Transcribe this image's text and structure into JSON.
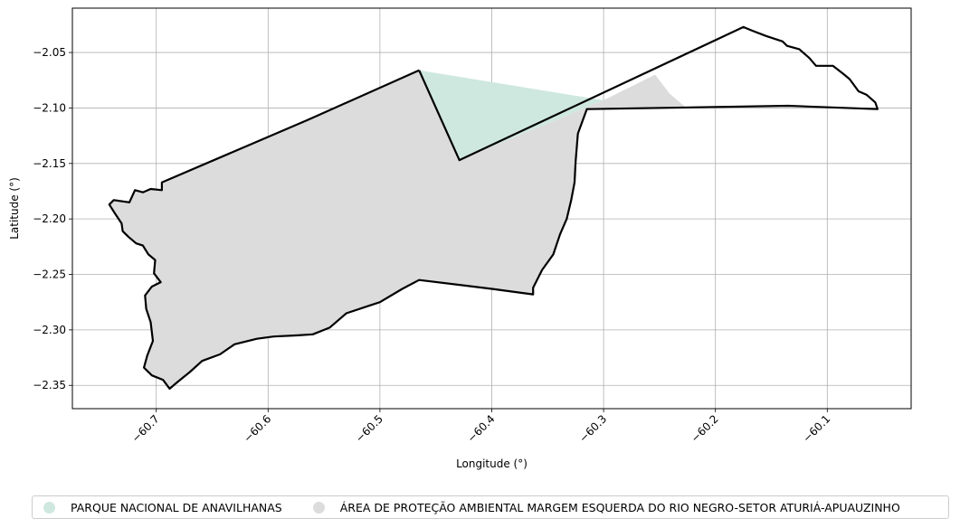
{
  "chart_data": {
    "type": "map",
    "xlabel": "Longitude (°)",
    "ylabel": "Latitude (°)",
    "xlim": [
      -60.775,
      -60.025
    ],
    "ylim": [
      -2.371,
      -2.01
    ],
    "xticks": [
      -60.7,
      -60.6,
      -60.5,
      -60.4,
      -60.3,
      -60.2,
      -60.1
    ],
    "xtick_labels": [
      "−60.7",
      "−60.6",
      "−60.5",
      "−60.4",
      "−60.3",
      "−60.2",
      "−60.1"
    ],
    "yticks": [
      -2.05,
      -2.1,
      -2.15,
      -2.2,
      -2.25,
      -2.3,
      -2.35
    ],
    "ytick_labels": [
      "−2.05",
      "−2.10",
      "−2.15",
      "−2.20",
      "−2.25",
      "−2.30",
      "−2.35"
    ],
    "grid": true,
    "legend_position": "bottom",
    "series": [
      {
        "name": "PARQUE NACIONAL DE ANAVILHANAS",
        "color": "#cfe8df",
        "coords": [
          [
            -60.465,
            -2.066
          ],
          [
            -60.429,
            -2.147
          ],
          [
            -60.3,
            -2.093
          ],
          [
            -60.465,
            -2.066
          ]
        ]
      },
      {
        "name": "ÁREA DE PROTEÇÃO AMBIENTAL MARGEM ESQUERDA DO RIO NEGRO-SETOR ATURIÁ-APUAUZINHO",
        "color": "#dcdcdc",
        "coords": [
          [
            -60.465,
            -2.066
          ],
          [
            -60.565,
            -2.111
          ],
          [
            -60.695,
            -2.167
          ],
          [
            -60.695,
            -2.174
          ],
          [
            -60.705,
            -2.173
          ],
          [
            -60.712,
            -2.176
          ],
          [
            -60.719,
            -2.174
          ],
          [
            -60.724,
            -2.185
          ],
          [
            -60.738,
            -2.183
          ],
          [
            -60.742,
            -2.187
          ],
          [
            -60.737,
            -2.195
          ],
          [
            -60.731,
            -2.204
          ],
          [
            -60.73,
            -2.211
          ],
          [
            -60.725,
            -2.216
          ],
          [
            -60.718,
            -2.222
          ],
          [
            -60.712,
            -2.224
          ],
          [
            -60.707,
            -2.232
          ],
          [
            -60.701,
            -2.237
          ],
          [
            -60.702,
            -2.249
          ],
          [
            -60.696,
            -2.257
          ],
          [
            -60.704,
            -2.261
          ],
          [
            -60.71,
            -2.269
          ],
          [
            -60.709,
            -2.281
          ],
          [
            -60.705,
            -2.293
          ],
          [
            -60.703,
            -2.31
          ],
          [
            -60.708,
            -2.323
          ],
          [
            -60.711,
            -2.334
          ],
          [
            -60.704,
            -2.341
          ],
          [
            -60.694,
            -2.345
          ],
          [
            -60.688,
            -2.353
          ],
          [
            -60.681,
            -2.347
          ],
          [
            -60.67,
            -2.338
          ],
          [
            -60.659,
            -2.328
          ],
          [
            -60.643,
            -2.322
          ],
          [
            -60.63,
            -2.313
          ],
          [
            -60.61,
            -2.308
          ],
          [
            -60.595,
            -2.306
          ],
          [
            -60.575,
            -2.305
          ],
          [
            -60.56,
            -2.304
          ],
          [
            -60.545,
            -2.298
          ],
          [
            -60.53,
            -2.285
          ],
          [
            -60.512,
            -2.279
          ],
          [
            -60.5,
            -2.275
          ],
          [
            -60.48,
            -2.263
          ],
          [
            -60.465,
            -2.255
          ],
          [
            -60.4,
            -2.263
          ],
          [
            -60.363,
            -2.268
          ],
          [
            -60.363,
            -2.262
          ],
          [
            -60.355,
            -2.246
          ],
          [
            -60.345,
            -2.232
          ],
          [
            -60.339,
            -2.214
          ],
          [
            -60.333,
            -2.2
          ],
          [
            -60.329,
            -2.183
          ],
          [
            -60.326,
            -2.167
          ],
          [
            -60.325,
            -2.148
          ],
          [
            -60.323,
            -2.123
          ],
          [
            -60.315,
            -2.101
          ],
          [
            -60.227,
            -2.099
          ],
          [
            -60.241,
            -2.087
          ],
          [
            -60.254,
            -2.07
          ],
          [
            -60.3,
            -2.093
          ],
          [
            -60.429,
            -2.147
          ],
          [
            -60.465,
            -2.066
          ]
        ]
      }
    ],
    "boundaries": [
      [
        [
          -60.465,
          -2.066
        ],
        [
          -60.565,
          -2.111
        ],
        [
          -60.695,
          -2.167
        ],
        [
          -60.695,
          -2.174
        ],
        [
          -60.705,
          -2.173
        ],
        [
          -60.712,
          -2.176
        ],
        [
          -60.719,
          -2.174
        ],
        [
          -60.724,
          -2.185
        ],
        [
          -60.738,
          -2.183
        ],
        [
          -60.742,
          -2.187
        ],
        [
          -60.737,
          -2.195
        ],
        [
          -60.731,
          -2.204
        ],
        [
          -60.73,
          -2.211
        ],
        [
          -60.725,
          -2.216
        ],
        [
          -60.718,
          -2.222
        ],
        [
          -60.712,
          -2.224
        ],
        [
          -60.707,
          -2.232
        ],
        [
          -60.701,
          -2.237
        ],
        [
          -60.702,
          -2.249
        ],
        [
          -60.696,
          -2.257
        ],
        [
          -60.704,
          -2.261
        ],
        [
          -60.71,
          -2.269
        ],
        [
          -60.709,
          -2.281
        ],
        [
          -60.705,
          -2.293
        ],
        [
          -60.703,
          -2.31
        ],
        [
          -60.708,
          -2.323
        ],
        [
          -60.711,
          -2.334
        ],
        [
          -60.704,
          -2.341
        ],
        [
          -60.694,
          -2.345
        ],
        [
          -60.688,
          -2.353
        ],
        [
          -60.681,
          -2.347
        ],
        [
          -60.67,
          -2.338
        ],
        [
          -60.659,
          -2.328
        ],
        [
          -60.643,
          -2.322
        ],
        [
          -60.63,
          -2.313
        ],
        [
          -60.61,
          -2.308
        ],
        [
          -60.595,
          -2.306
        ],
        [
          -60.575,
          -2.305
        ],
        [
          -60.56,
          -2.304
        ],
        [
          -60.545,
          -2.298
        ],
        [
          -60.53,
          -2.285
        ],
        [
          -60.512,
          -2.279
        ],
        [
          -60.5,
          -2.275
        ],
        [
          -60.48,
          -2.263
        ],
        [
          -60.465,
          -2.255
        ],
        [
          -60.4,
          -2.263
        ],
        [
          -60.363,
          -2.268
        ],
        [
          -60.363,
          -2.262
        ],
        [
          -60.355,
          -2.246
        ],
        [
          -60.345,
          -2.232
        ],
        [
          -60.339,
          -2.214
        ],
        [
          -60.333,
          -2.2
        ],
        [
          -60.329,
          -2.183
        ],
        [
          -60.326,
          -2.167
        ],
        [
          -60.325,
          -2.148
        ],
        [
          -60.323,
          -2.123
        ],
        [
          -60.315,
          -2.101
        ],
        [
          -60.135,
          -2.098
        ],
        [
          -60.055,
          -2.101
        ],
        [
          -60.057,
          -2.095
        ],
        [
          -60.065,
          -2.088
        ],
        [
          -60.072,
          -2.085
        ],
        [
          -60.08,
          -2.074
        ],
        [
          -60.086,
          -2.069
        ],
        [
          -60.095,
          -2.062
        ],
        [
          -60.102,
          -2.062
        ],
        [
          -60.11,
          -2.062
        ],
        [
          -60.116,
          -2.055
        ],
        [
          -60.125,
          -2.047
        ],
        [
          -60.136,
          -2.044
        ],
        [
          -60.14,
          -2.04
        ],
        [
          -60.155,
          -2.035
        ],
        [
          -60.168,
          -2.03
        ],
        [
          -60.175,
          -2.027
        ],
        [
          -60.429,
          -2.147
        ],
        [
          -60.465,
          -2.066
        ]
      ]
    ]
  }
}
